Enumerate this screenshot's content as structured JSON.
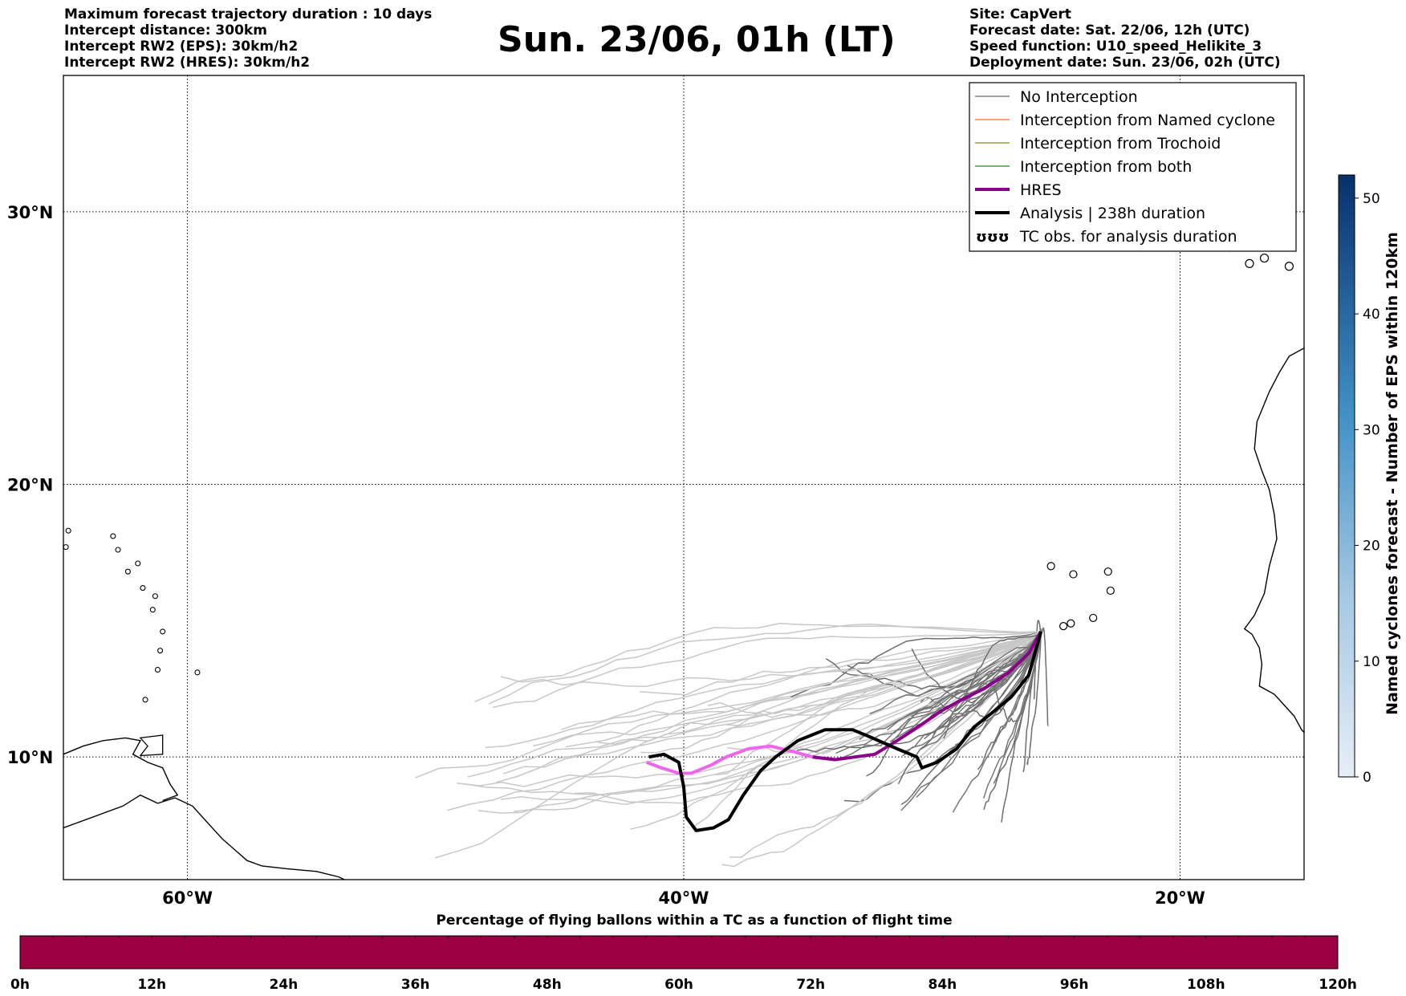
{
  "header": {
    "left": [
      "Maximum forecast trajectory duration : 10 days",
      "Intercept distance: 300km",
      "Intercept RW2 (EPS):  30km/h2",
      "Intercept RW2 (HRES): 30km/h2"
    ],
    "title": "Sun. 23/06, 01h (LT)",
    "right": [
      "Site: CapVert",
      "Forecast date: Sat. 22/06, 12h (UTC)",
      "Speed function: U10_speed_Helikite_3",
      "Deployment date: Sun. 23/06, 02h (UTC)"
    ]
  },
  "map": {
    "lon_ticks": [
      "60°W",
      "40°W",
      "20°W"
    ],
    "lat_ticks": [
      "30°N",
      "20°N",
      "10°N"
    ]
  },
  "legend": [
    {
      "label": "No Interception",
      "color": "#808080"
    },
    {
      "label": "Interception from Named cyclone",
      "color": "#ff7f50"
    },
    {
      "label": "Interception from Trochoid",
      "color": "#999944"
    },
    {
      "label": "Interception from both",
      "color": "#33aa33"
    },
    {
      "label": "HRES",
      "color": "#8b008b"
    },
    {
      "label": "Analysis | 238h duration",
      "color": "#000000"
    },
    {
      "label": "TC obs. for analysis duration",
      "color": "#000000",
      "symbol": "ʊʊʊ"
    }
  ],
  "colorbar_right": {
    "label": "Named cyclones forecast - Number of EPS within 120km",
    "ticks": [
      "0",
      "10",
      "20",
      "30",
      "40",
      "50"
    ],
    "colors": [
      "#e6eef8",
      "#08306b"
    ]
  },
  "colorbar_bottom": {
    "title": "Percentage of flying ballons within a TC as a function of flight time",
    "ticks": [
      "0h",
      "12h",
      "24h",
      "36h",
      "48h",
      "60h",
      "72h",
      "84h",
      "96h",
      "108h",
      "120h"
    ],
    "color": "#9c0040"
  },
  "chart_data": {
    "type": "line",
    "projection": "map (lon/lat)",
    "xlim": [
      -65,
      -15
    ],
    "ylim": [
      5.5,
      35
    ],
    "grid": true,
    "legend_position": "top-right",
    "series": [
      {
        "name": "HRES",
        "x": [
          -41.5,
          -40.9,
          -40.2,
          -39.7,
          -38.9,
          -38.3,
          -37.4,
          -36.5,
          -35.6,
          -34.8,
          -33.9,
          -33.1,
          -32.3,
          -31.4,
          -30.4,
          -29.6,
          -28.8,
          -27.9,
          -26.9,
          -26.1,
          -25.6
        ],
        "y": [
          9.8,
          9.6,
          9.4,
          9.4,
          9.7,
          10.0,
          10.3,
          10.4,
          10.2,
          10.0,
          9.9,
          10.0,
          10.1,
          10.6,
          11.2,
          11.7,
          12.1,
          12.5,
          13.1,
          13.8,
          14.6
        ]
      },
      {
        "name": "Analysis | 238h duration",
        "x": [
          -41.4,
          -40.8,
          -40.2,
          -40.0,
          -39.9,
          -39.5,
          -38.8,
          -38.2,
          -37.6,
          -36.9,
          -36.3,
          -35.4,
          -34.3,
          -33.2,
          -32.4,
          -31.4,
          -30.6,
          -30.4,
          -29.8,
          -29.0,
          -28.3,
          -27.6,
          -26.8,
          -26.1,
          -25.6
        ],
        "y": [
          10.0,
          10.1,
          9.8,
          8.9,
          7.8,
          7.3,
          7.4,
          7.7,
          8.6,
          9.5,
          10.0,
          10.6,
          11.0,
          11.0,
          10.7,
          10.3,
          10.0,
          9.6,
          9.8,
          10.3,
          11.1,
          11.6,
          12.2,
          13.0,
          14.6
        ]
      }
    ]
  }
}
